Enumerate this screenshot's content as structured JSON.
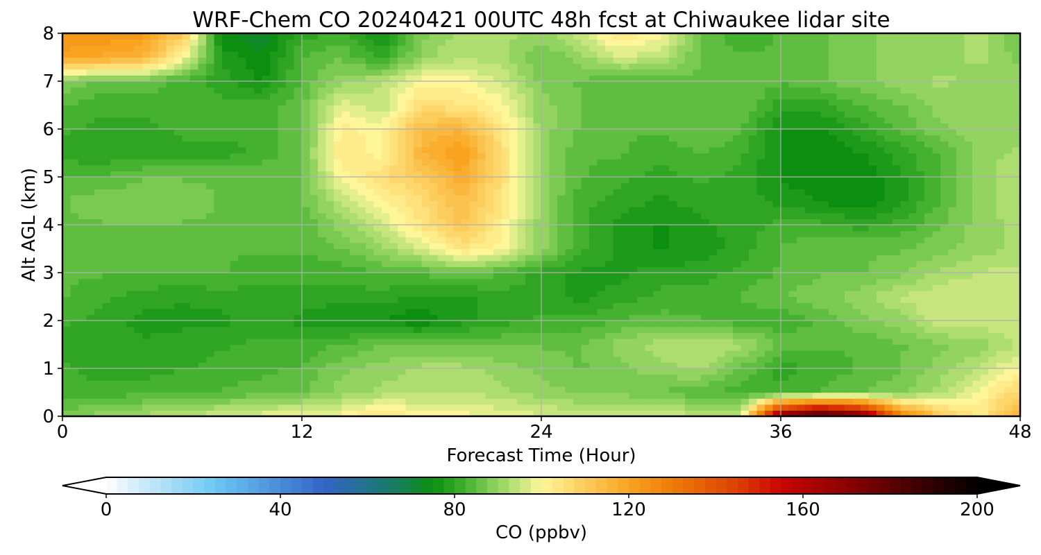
{
  "chart_data": {
    "type": "heatmap",
    "title": "WRF-Chem CO  20240421 00UTC 48h fcst at Chiwaukee lidar site",
    "xlabel": "Forecast Time (Hour)",
    "ylabel": "Alt AGL (km)",
    "xlim": [
      0,
      48
    ],
    "ylim": [
      0,
      8
    ],
    "x_ticks": [
      0,
      12,
      24,
      36,
      48
    ],
    "x_tick_labels": [
      "0",
      "12",
      "24",
      "36",
      "48"
    ],
    "y_ticks": [
      0,
      1,
      2,
      3,
      4,
      5,
      6,
      7,
      8
    ],
    "y_tick_labels": [
      "0",
      "1",
      "2",
      "3",
      "4",
      "5",
      "6",
      "7",
      "8"
    ],
    "grid": true,
    "colorbar": {
      "label": "CO  (ppbv)",
      "range": [
        0,
        200
      ],
      "ticks": [
        0,
        40,
        80,
        120,
        160,
        200
      ],
      "tick_labels": [
        "0",
        "40",
        "80",
        "120",
        "160",
        "200"
      ],
      "extend": "both",
      "orientation": "horizontal",
      "placement": "bottom"
    },
    "grid_x_hours": [
      0,
      2,
      4,
      6,
      8,
      10,
      12,
      14,
      16,
      18,
      20,
      22,
      24,
      26,
      28,
      30,
      32,
      34,
      36,
      38,
      40,
      42,
      44,
      46,
      48
    ],
    "grid_y_km": [
      0,
      0.5,
      1,
      1.5,
      2,
      2.5,
      3,
      3.5,
      4,
      4.5,
      5,
      5.5,
      6,
      6.5,
      7,
      7.5,
      8
    ],
    "values_ppbv_rows_from_altitude_0": [
      [
        88,
        90,
        92,
        94,
        96,
        98,
        100,
        100,
        106,
        100,
        100,
        98,
        97,
        96,
        96,
        95,
        95,
        95,
        175,
        190,
        178,
        130,
        112,
        102,
        118
      ],
      [
        82,
        82,
        83,
        84,
        84,
        85,
        86,
        90,
        92,
        93,
        94,
        92,
        90,
        88,
        88,
        86,
        84,
        82,
        82,
        84,
        86,
        88,
        92,
        100,
        108
      ],
      [
        82,
        80,
        80,
        81,
        82,
        83,
        84,
        88,
        90,
        92,
        92,
        90,
        88,
        86,
        88,
        90,
        92,
        86,
        80,
        82,
        84,
        86,
        90,
        94,
        100
      ],
      [
        80,
        80,
        79,
        80,
        81,
        82,
        82,
        84,
        86,
        86,
        86,
        86,
        86,
        86,
        90,
        93,
        94,
        92,
        86,
        84,
        84,
        86,
        88,
        90,
        94
      ],
      [
        82,
        80,
        78,
        78,
        78,
        80,
        78,
        76,
        76,
        74,
        78,
        80,
        82,
        82,
        84,
        85,
        84,
        82,
        82,
        84,
        88,
        90,
        96,
        95,
        96
      ],
      [
        84,
        82,
        80,
        79,
        80,
        80,
        80,
        80,
        80,
        78,
        78,
        80,
        80,
        78,
        80,
        82,
        82,
        84,
        86,
        88,
        90,
        94,
        96,
        95,
        96
      ],
      [
        84,
        84,
        84,
        84,
        84,
        82,
        82,
        82,
        84,
        84,
        86,
        84,
        80,
        78,
        78,
        80,
        80,
        82,
        84,
        86,
        86,
        88,
        92,
        94,
        95
      ],
      [
        86,
        86,
        86,
        86,
        84,
        84,
        84,
        86,
        90,
        96,
        104,
        100,
        90,
        82,
        78,
        76,
        77,
        80,
        84,
        86,
        86,
        86,
        88,
        90,
        92
      ],
      [
        86,
        86,
        86,
        86,
        86,
        86,
        84,
        90,
        96,
        104,
        112,
        102,
        90,
        82,
        78,
        76,
        78,
        80,
        82,
        82,
        80,
        82,
        86,
        90,
        92
      ],
      [
        86,
        88,
        88,
        88,
        86,
        86,
        86,
        94,
        100,
        106,
        114,
        104,
        90,
        82,
        80,
        78,
        80,
        80,
        78,
        76,
        74,
        78,
        84,
        90,
        94
      ],
      [
        84,
        84,
        86,
        86,
        86,
        86,
        86,
        100,
        106,
        110,
        118,
        106,
        90,
        84,
        82,
        80,
        82,
        80,
        76,
        74,
        74,
        78,
        84,
        90,
        94
      ],
      [
        80,
        79,
        80,
        80,
        80,
        82,
        86,
        104,
        100,
        116,
        122,
        106,
        90,
        84,
        84,
        82,
        84,
        82,
        76,
        74,
        76,
        80,
        84,
        90,
        92
      ],
      [
        82,
        80,
        80,
        82,
        82,
        82,
        86,
        102,
        100,
        114,
        116,
        104,
        90,
        86,
        84,
        84,
        86,
        84,
        76,
        76,
        80,
        84,
        88,
        90,
        90
      ],
      [
        84,
        82,
        82,
        84,
        82,
        82,
        86,
        98,
        94,
        106,
        104,
        100,
        90,
        86,
        84,
        84,
        86,
        86,
        80,
        80,
        84,
        86,
        90,
        90,
        90
      ],
      [
        88,
        86,
        86,
        82,
        80,
        76,
        84,
        90,
        94,
        100,
        100,
        96,
        88,
        86,
        84,
        84,
        86,
        86,
        84,
        86,
        88,
        90,
        92,
        90,
        90
      ],
      [
        120,
        118,
        116,
        100,
        78,
        74,
        84,
        86,
        80,
        90,
        94,
        92,
        86,
        90,
        96,
        94,
        86,
        84,
        84,
        86,
        88,
        90,
        90,
        92,
        88
      ],
      [
        124,
        124,
        122,
        112,
        74,
        72,
        80,
        82,
        76,
        88,
        92,
        92,
        90,
        96,
        104,
        100,
        86,
        82,
        84,
        86,
        88,
        90,
        90,
        92,
        86
      ]
    ],
    "colormap_anchors": [
      {
        "v": 0,
        "c": "#ffffff"
      },
      {
        "v": 5,
        "c": "#dff0fb"
      },
      {
        "v": 25,
        "c": "#6cc8f2"
      },
      {
        "v": 50,
        "c": "#3264c6"
      },
      {
        "v": 65,
        "c": "#1a7a6c"
      },
      {
        "v": 75,
        "c": "#0c8f10"
      },
      {
        "v": 82,
        "c": "#3fae2c"
      },
      {
        "v": 88,
        "c": "#7fcc55"
      },
      {
        "v": 95,
        "c": "#c6e57e"
      },
      {
        "v": 100,
        "c": "#fff69a"
      },
      {
        "v": 110,
        "c": "#fccc5c"
      },
      {
        "v": 120,
        "c": "#f9a320"
      },
      {
        "v": 130,
        "c": "#ee7c06"
      },
      {
        "v": 145,
        "c": "#dc3f04"
      },
      {
        "v": 155,
        "c": "#c80404"
      },
      {
        "v": 170,
        "c": "#8c0202"
      },
      {
        "v": 185,
        "c": "#460000"
      },
      {
        "v": 200,
        "c": "#000000"
      }
    ],
    "extend_colors": {
      "below": "#ffffff",
      "above": "#000000"
    },
    "colors": {
      "grid": "#b0b0b0",
      "frame": "#000000"
    }
  }
}
